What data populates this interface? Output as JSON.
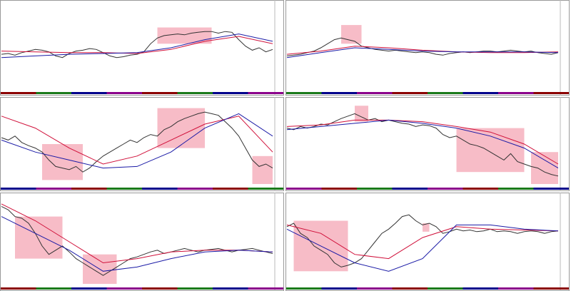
{
  "ylim": [
    0,
    100
  ],
  "xlim": [
    0,
    40
  ],
  "ma_x": [
    0,
    5,
    10,
    15,
    20,
    25,
    30,
    35,
    40
  ],
  "panels": [
    {
      "price": [
        42,
        43,
        41,
        44,
        46,
        48,
        47,
        45,
        40,
        38,
        43,
        46,
        47,
        49,
        48,
        44,
        40,
        38,
        39,
        41,
        42,
        45,
        55,
        62,
        65,
        66,
        67,
        66,
        68,
        69,
        70,
        70,
        68,
        70,
        69,
        60,
        52,
        47,
        50,
        45,
        48
      ],
      "red": [
        46,
        45,
        44,
        44,
        43,
        48,
        58,
        64,
        55
      ],
      "blue": [
        38,
        40,
        42,
        43,
        44,
        50,
        60,
        67,
        58
      ],
      "zones": [
        {
          "x0": 23,
          "x1": 31,
          "y0": 55,
          "y1": 75
        }
      ]
    },
    {
      "price": [
        40,
        41,
        42,
        44,
        46,
        50,
        55,
        60,
        62,
        60,
        58,
        52,
        50,
        48,
        47,
        46,
        47,
        46,
        45,
        44,
        45,
        44,
        42,
        41,
        43,
        44,
        45,
        44,
        45,
        46,
        46,
        45,
        46,
        47,
        46,
        45,
        46,
        44,
        43,
        42,
        44
      ],
      "red": [
        42,
        46,
        52,
        50,
        47,
        45,
        44,
        44,
        45
      ],
      "blue": [
        38,
        44,
        50,
        48,
        46,
        45,
        45,
        45,
        44
      ],
      "zones": [
        {
          "x0": 8,
          "x1": 11,
          "y0": 55,
          "y1": 78
        }
      ]
    },
    {
      "price": [
        58,
        55,
        60,
        52,
        48,
        45,
        40,
        30,
        22,
        20,
        18,
        22,
        15,
        20,
        28,
        35,
        40,
        45,
        50,
        55,
        52,
        58,
        62,
        60,
        68,
        72,
        78,
        82,
        85,
        88,
        90,
        88,
        86,
        78,
        70,
        60,
        45,
        30,
        22,
        25,
        20
      ],
      "red": [
        85,
        70,
        45,
        25,
        35,
        55,
        75,
        85,
        40
      ],
      "blue": [
        55,
        40,
        30,
        20,
        22,
        40,
        70,
        88,
        60
      ],
      "zones": [
        {
          "x0": 6,
          "x1": 12,
          "y0": 5,
          "y1": 50
        },
        {
          "x0": 23,
          "x1": 30,
          "y0": 45,
          "y1": 95
        },
        {
          "x0": 37,
          "x1": 40,
          "y0": 0,
          "y1": 35
        }
      ]
    },
    {
      "price": [
        70,
        68,
        72,
        70,
        72,
        75,
        74,
        78,
        82,
        85,
        88,
        84,
        80,
        82,
        78,
        80,
        78,
        76,
        75,
        72,
        74,
        73,
        70,
        62,
        58,
        60,
        55,
        50,
        48,
        45,
        40,
        35,
        30,
        38,
        28,
        25,
        22,
        20,
        15,
        12,
        10
      ],
      "red": [
        72,
        74,
        80,
        80,
        78,
        72,
        65,
        50,
        25
      ],
      "blue": [
        68,
        72,
        76,
        80,
        76,
        70,
        60,
        45,
        20
      ],
      "zones": [
        {
          "x0": 10,
          "x1": 12,
          "y0": 78,
          "y1": 98
        },
        {
          "x0": 25,
          "x1": 35,
          "y0": 15,
          "y1": 70
        },
        {
          "x0": 36,
          "x1": 40,
          "y0": 0,
          "y1": 40
        }
      ]
    },
    {
      "price": [
        92,
        88,
        80,
        78,
        72,
        60,
        45,
        35,
        40,
        45,
        38,
        30,
        25,
        20,
        15,
        10,
        15,
        20,
        25,
        30,
        32,
        35,
        38,
        40,
        36,
        38,
        40,
        42,
        40,
        38,
        40,
        41,
        42,
        40,
        38,
        40,
        41,
        42,
        40,
        38,
        36
      ],
      "red": [
        95,
        75,
        50,
        25,
        30,
        38,
        40,
        40,
        38
      ],
      "blue": [
        80,
        60,
        40,
        15,
        20,
        30,
        38,
        40,
        38
      ],
      "zones": [
        {
          "x0": 2,
          "x1": 9,
          "y0": 30,
          "y1": 80
        },
        {
          "x0": 12,
          "x1": 17,
          "y0": 0,
          "y1": 35
        }
      ]
    },
    {
      "price": [
        68,
        72,
        60,
        55,
        45,
        40,
        35,
        25,
        20,
        22,
        25,
        30,
        40,
        50,
        60,
        65,
        72,
        80,
        82,
        75,
        70,
        72,
        68,
        60,
        62,
        65,
        63,
        64,
        62,
        63,
        65,
        62,
        63,
        62,
        60,
        62,
        63,
        62,
        60,
        62,
        63
      ],
      "red": [
        70,
        60,
        35,
        30,
        55,
        68,
        65,
        64,
        63
      ],
      "blue": [
        65,
        45,
        25,
        15,
        30,
        70,
        70,
        65,
        63
      ],
      "zones": [
        {
          "x0": 1,
          "x1": 9,
          "y0": 15,
          "y1": 75
        },
        {
          "x0": 20,
          "x1": 21,
          "y0": 62,
          "y1": 72
        }
      ]
    }
  ]
}
